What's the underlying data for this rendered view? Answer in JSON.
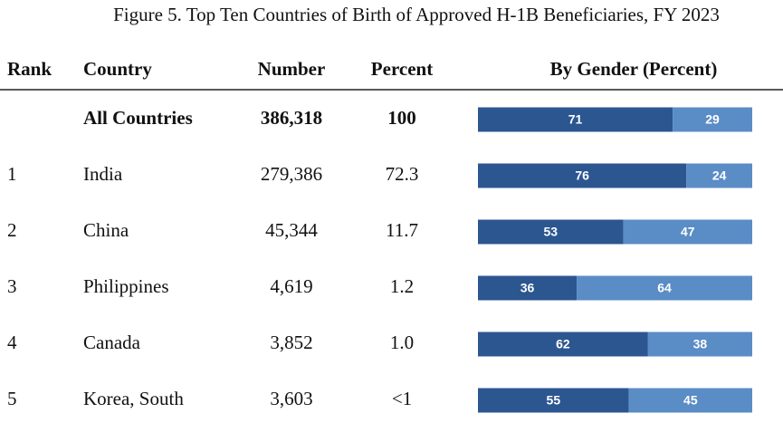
{
  "title": "Figure 5. Top Ten Countries of Birth of Approved H-1B Beneficiaries, FY 2023",
  "table": {
    "headers": [
      "Rank",
      "Country",
      "Number",
      "Percent",
      "By Gender (Percent)"
    ],
    "bar_colors": [
      "#2c5690",
      "#5a8cc6"
    ],
    "rows": [
      {
        "country": "All Countries",
        "number": "386,318",
        "percent": "100",
        "gender": [
          71,
          29
        ],
        "bold": true
      },
      {
        "rank": "1",
        "country": "India",
        "number": "279,386",
        "percent": "72.3",
        "gender": [
          76,
          24
        ]
      },
      {
        "rank": "2",
        "country": "China",
        "number": "45,344",
        "percent": "11.7",
        "gender": [
          53,
          47
        ]
      },
      {
        "rank": "3",
        "country": "Philippines",
        "number": "4,619",
        "percent": "1.2",
        "gender": [
          36,
          64
        ]
      },
      {
        "rank": "4",
        "country": "Canada",
        "number": "3,852",
        "percent": "1.0",
        "gender": [
          62,
          38
        ]
      },
      {
        "rank": "5",
        "country": "Korea, South",
        "number": "3,603",
        "percent": "<1",
        "gender": [
          55,
          45
        ]
      }
    ]
  }
}
